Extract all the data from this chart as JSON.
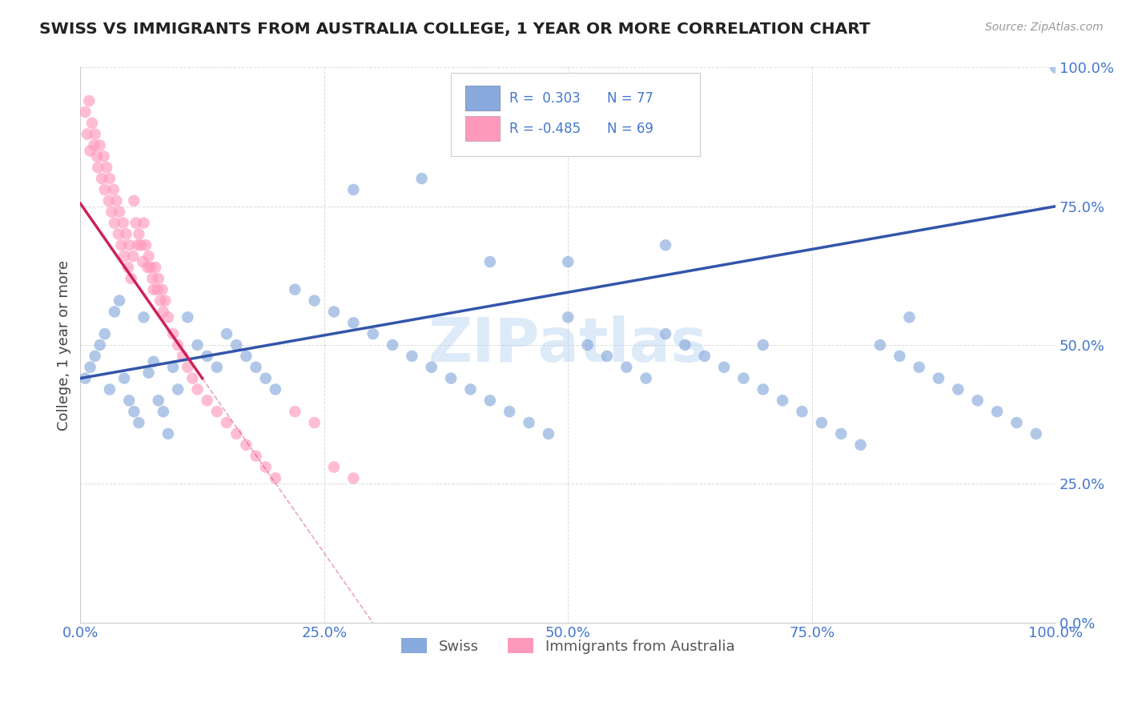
{
  "title": "SWISS VS IMMIGRANTS FROM AUSTRALIA COLLEGE, 1 YEAR OR MORE CORRELATION CHART",
  "source": "Source: ZipAtlas.com",
  "ylabel": "College, 1 year or more",
  "r_swiss": 0.303,
  "n_swiss": 77,
  "r_immigrants": -0.485,
  "n_immigrants": 69,
  "blue_color": "#88AADD",
  "pink_color": "#FF99BB",
  "blue_line_color": "#3355AA",
  "pink_line_color": "#CC2255",
  "watermark": "ZIPatlas",
  "xlim": [
    0,
    1
  ],
  "ylim": [
    0,
    1
  ],
  "yticks": [
    0.0,
    0.25,
    0.5,
    0.75,
    1.0
  ],
  "xticks": [
    0.0,
    0.25,
    0.5,
    0.75,
    1.0
  ],
  "swiss_x": [
    0.005,
    0.01,
    0.015,
    0.02,
    0.025,
    0.03,
    0.035,
    0.04,
    0.045,
    0.05,
    0.055,
    0.06,
    0.065,
    0.07,
    0.075,
    0.08,
    0.085,
    0.09,
    0.095,
    0.1,
    0.11,
    0.12,
    0.13,
    0.14,
    0.15,
    0.16,
    0.17,
    0.18,
    0.19,
    0.2,
    0.22,
    0.24,
    0.26,
    0.28,
    0.3,
    0.32,
    0.34,
    0.36,
    0.38,
    0.4,
    0.42,
    0.44,
    0.46,
    0.48,
    0.5,
    0.52,
    0.54,
    0.56,
    0.58,
    0.6,
    0.62,
    0.64,
    0.66,
    0.68,
    0.7,
    0.72,
    0.74,
    0.76,
    0.78,
    0.8,
    0.82,
    0.84,
    0.86,
    0.88,
    0.9,
    0.92,
    0.94,
    0.96,
    0.98,
    1.0,
    0.28,
    0.35,
    0.42,
    0.5,
    0.6,
    0.7,
    0.85
  ],
  "swiss_y": [
    0.44,
    0.46,
    0.48,
    0.5,
    0.52,
    0.42,
    0.56,
    0.58,
    0.44,
    0.4,
    0.38,
    0.36,
    0.55,
    0.45,
    0.47,
    0.4,
    0.38,
    0.34,
    0.46,
    0.42,
    0.55,
    0.5,
    0.48,
    0.46,
    0.52,
    0.5,
    0.48,
    0.46,
    0.44,
    0.42,
    0.6,
    0.58,
    0.56,
    0.54,
    0.52,
    0.5,
    0.48,
    0.46,
    0.44,
    0.42,
    0.4,
    0.38,
    0.36,
    0.34,
    0.55,
    0.5,
    0.48,
    0.46,
    0.44,
    0.52,
    0.5,
    0.48,
    0.46,
    0.44,
    0.42,
    0.4,
    0.38,
    0.36,
    0.34,
    0.32,
    0.5,
    0.48,
    0.46,
    0.44,
    0.42,
    0.4,
    0.38,
    0.36,
    0.34,
    1.0,
    0.78,
    0.8,
    0.65,
    0.65,
    0.68,
    0.5,
    0.55
  ],
  "immigrants_x": [
    0.005,
    0.007,
    0.009,
    0.01,
    0.012,
    0.014,
    0.015,
    0.017,
    0.018,
    0.02,
    0.022,
    0.024,
    0.025,
    0.027,
    0.029,
    0.03,
    0.032,
    0.034,
    0.035,
    0.037,
    0.039,
    0.04,
    0.042,
    0.044,
    0.045,
    0.047,
    0.049,
    0.05,
    0.052,
    0.054,
    0.055,
    0.057,
    0.059,
    0.06,
    0.062,
    0.064,
    0.065,
    0.067,
    0.069,
    0.07,
    0.072,
    0.074,
    0.075,
    0.077,
    0.079,
    0.08,
    0.082,
    0.084,
    0.085,
    0.087,
    0.09,
    0.095,
    0.1,
    0.105,
    0.11,
    0.115,
    0.12,
    0.13,
    0.14,
    0.15,
    0.16,
    0.17,
    0.18,
    0.19,
    0.2,
    0.22,
    0.24,
    0.26,
    0.28
  ],
  "immigrants_y": [
    0.92,
    0.88,
    0.94,
    0.85,
    0.9,
    0.86,
    0.88,
    0.84,
    0.82,
    0.86,
    0.8,
    0.84,
    0.78,
    0.82,
    0.76,
    0.8,
    0.74,
    0.78,
    0.72,
    0.76,
    0.7,
    0.74,
    0.68,
    0.72,
    0.66,
    0.7,
    0.64,
    0.68,
    0.62,
    0.66,
    0.76,
    0.72,
    0.68,
    0.7,
    0.68,
    0.65,
    0.72,
    0.68,
    0.64,
    0.66,
    0.64,
    0.62,
    0.6,
    0.64,
    0.6,
    0.62,
    0.58,
    0.6,
    0.56,
    0.58,
    0.55,
    0.52,
    0.5,
    0.48,
    0.46,
    0.44,
    0.42,
    0.4,
    0.38,
    0.36,
    0.34,
    0.32,
    0.3,
    0.28,
    0.26,
    0.38,
    0.36,
    0.28,
    0.26
  ]
}
